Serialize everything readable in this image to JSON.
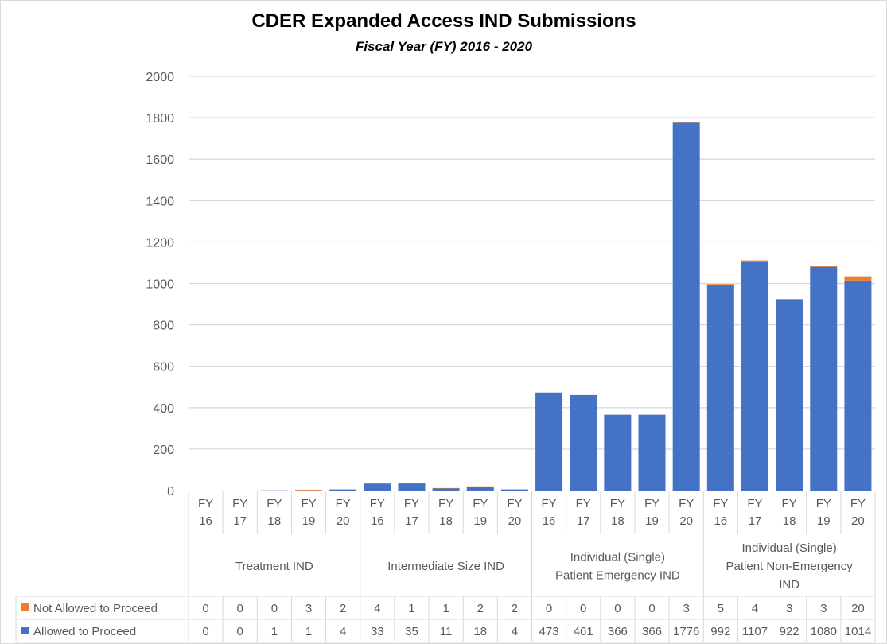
{
  "chart_data": {
    "type": "bar",
    "stacked": true,
    "title": "CDER Expanded Access IND Submissions",
    "subtitle": "Fiscal Year (FY) 2016 - 2020",
    "ylim": [
      0,
      2000
    ],
    "yticks": [
      0,
      200,
      400,
      600,
      800,
      1000,
      1200,
      1400,
      1600,
      1800,
      2000
    ],
    "grid": true,
    "legend": "data-table-bottom",
    "groups": [
      {
        "label": "Treatment IND",
        "lines": [
          "Treatment IND"
        ]
      },
      {
        "label": "Intermediate Size IND",
        "lines": [
          "Intermediate Size IND"
        ]
      },
      {
        "label": "Individual (Single) Patient Emergency IND",
        "lines": [
          "Individual (Single)",
          "Patient Emergency IND"
        ]
      },
      {
        "label": "Individual (Single) Patient Non-Emergency IND",
        "lines": [
          "Individual (Single)",
          "Patient Non-Emergency",
          "IND"
        ]
      }
    ],
    "categories": [
      [
        "FY",
        "16"
      ],
      [
        "FY",
        "17"
      ],
      [
        "FY",
        "18"
      ],
      [
        "FY",
        "19"
      ],
      [
        "FY",
        "20"
      ],
      [
        "FY",
        "16"
      ],
      [
        "FY",
        "17"
      ],
      [
        "FY",
        "18"
      ],
      [
        "FY",
        "19"
      ],
      [
        "FY",
        "20"
      ],
      [
        "FY",
        "16"
      ],
      [
        "FY",
        "17"
      ],
      [
        "FY",
        "18"
      ],
      [
        "FY",
        "19"
      ],
      [
        "FY",
        "20"
      ],
      [
        "FY",
        "16"
      ],
      [
        "FY",
        "17"
      ],
      [
        "FY",
        "18"
      ],
      [
        "FY",
        "19"
      ],
      [
        "FY",
        "20"
      ]
    ],
    "series": [
      {
        "name": "Allowed to Proceed",
        "color": "#4472c4",
        "values": [
          0,
          0,
          1,
          1,
          4,
          33,
          35,
          11,
          18,
          4,
          473,
          461,
          366,
          366,
          1776,
          992,
          1107,
          922,
          1080,
          1014
        ]
      },
      {
        "name": "Not Allowed to Proceed",
        "color": "#ed7d31",
        "values": [
          0,
          0,
          0,
          3,
          2,
          4,
          1,
          1,
          2,
          2,
          0,
          0,
          0,
          0,
          3,
          5,
          4,
          3,
          3,
          20
        ]
      }
    ]
  }
}
